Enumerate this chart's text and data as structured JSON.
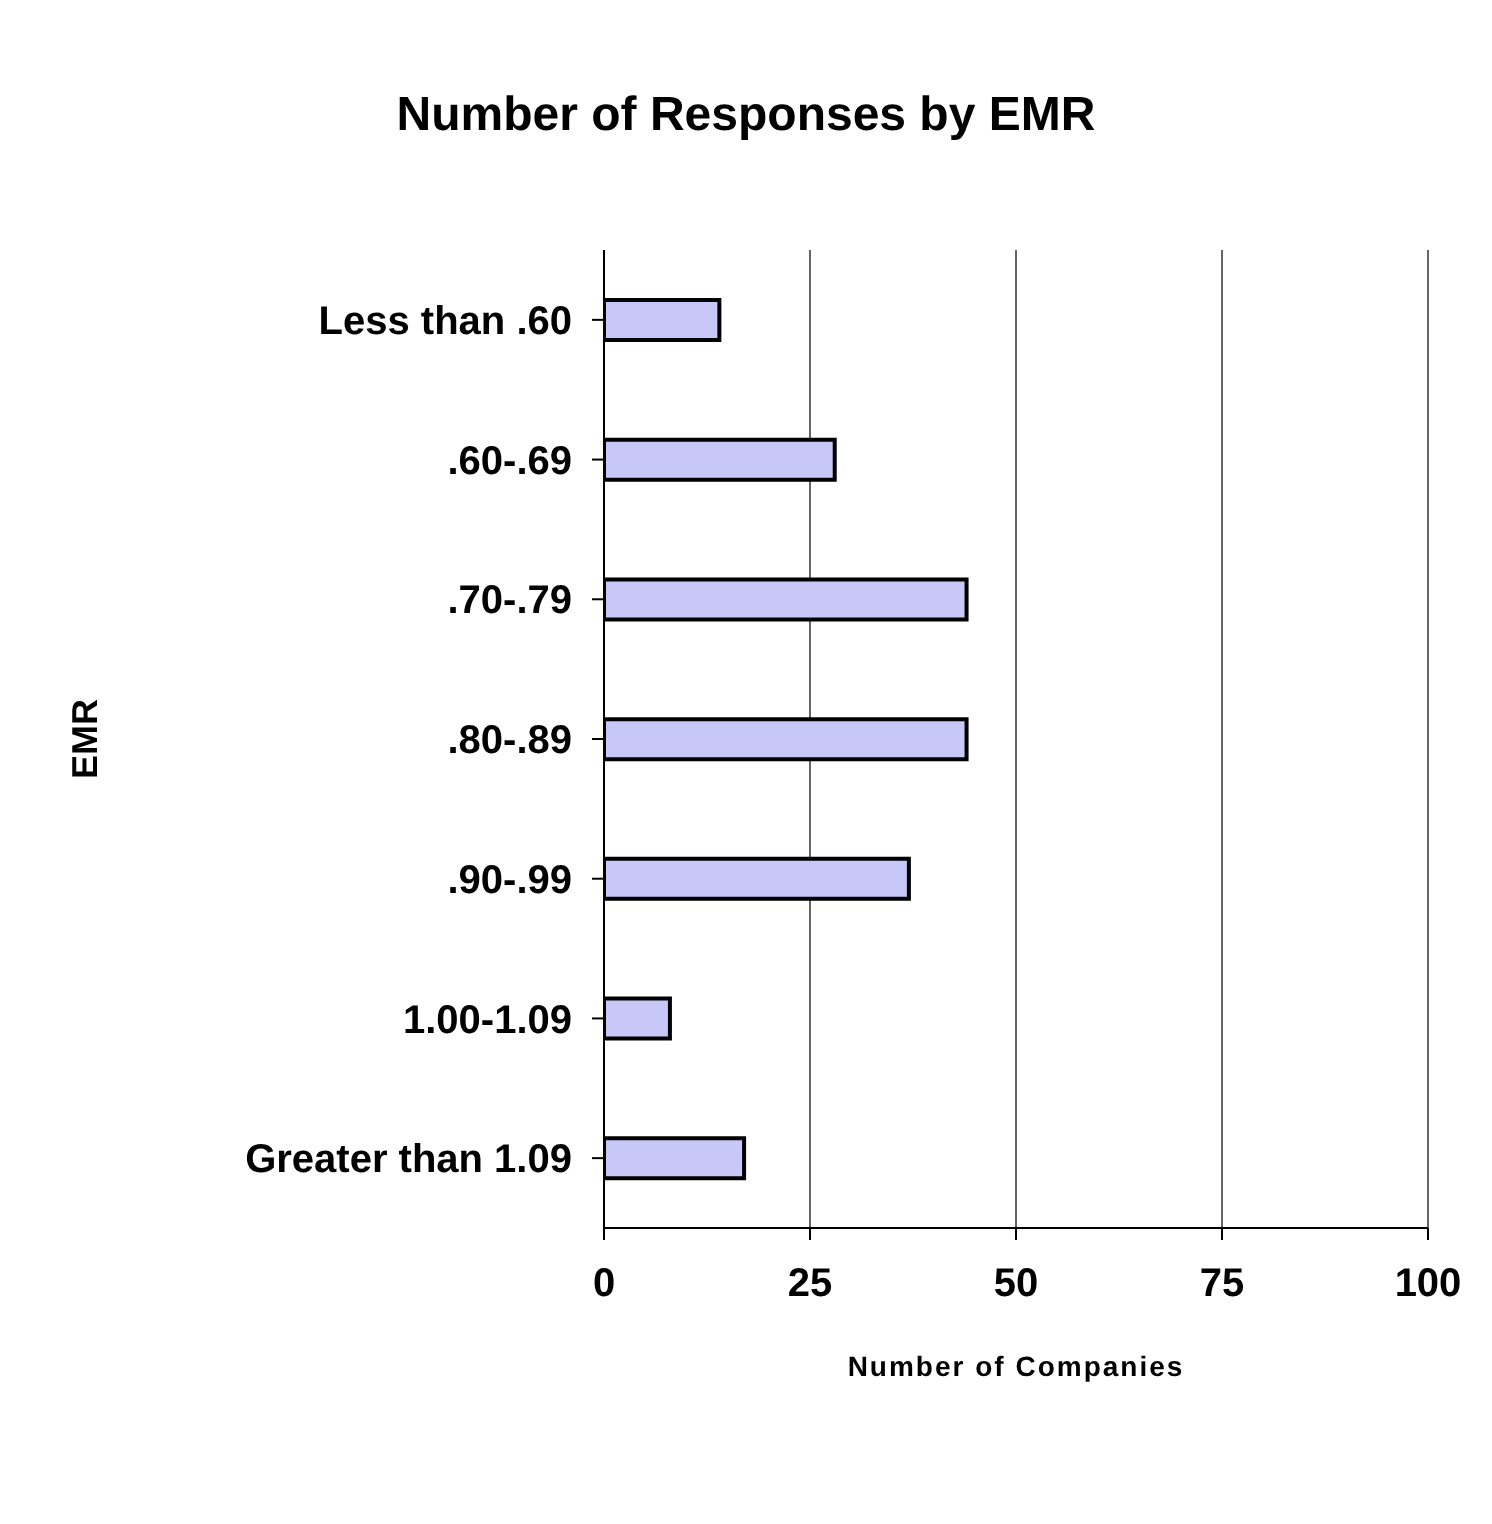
{
  "chart_data": {
    "type": "bar",
    "orientation": "horizontal",
    "title": "Number of Responses by EMR",
    "xlabel": "Number of Companies",
    "ylabel": "EMR",
    "categories": [
      "Less than .60",
      ".60-.69",
      ".70-.79",
      ".80-.89",
      ".90-.99",
      "1.00-1.09",
      "Greater than 1.09"
    ],
    "values": [
      14,
      28,
      44,
      44,
      37,
      8,
      17
    ],
    "color": "#c8c8f8",
    "xlim": [
      0,
      100
    ],
    "xticks": [
      0,
      25,
      50,
      75,
      100
    ],
    "grid": "x"
  }
}
